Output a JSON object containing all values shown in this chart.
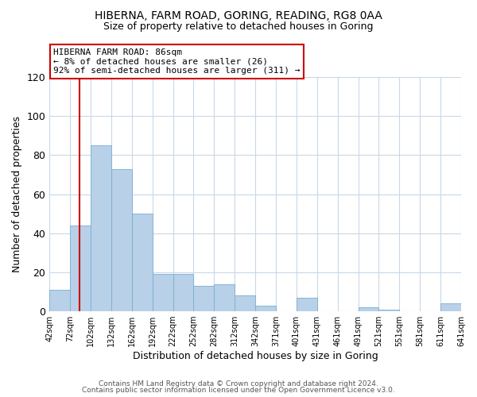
{
  "title": "HIBERNA, FARM ROAD, GORING, READING, RG8 0AA",
  "subtitle": "Size of property relative to detached houses in Goring",
  "xlabel": "Distribution of detached houses by size in Goring",
  "ylabel": "Number of detached properties",
  "bar_values": [
    11,
    44,
    85,
    73,
    50,
    19,
    19,
    13,
    14,
    8,
    3,
    0,
    7,
    0,
    0,
    2,
    1,
    0,
    0,
    4
  ],
  "bin_labels": [
    "42sqm",
    "72sqm",
    "102sqm",
    "132sqm",
    "162sqm",
    "192sqm",
    "222sqm",
    "252sqm",
    "282sqm",
    "312sqm",
    "342sqm",
    "371sqm",
    "401sqm",
    "431sqm",
    "461sqm",
    "491sqm",
    "521sqm",
    "551sqm",
    "581sqm",
    "611sqm",
    "641sqm"
  ],
  "bar_color": "#b8d0e8",
  "bar_edge_color": "#7aaed0",
  "redline_x": 1.4667,
  "annotation_title": "HIBERNA FARM ROAD: 86sqm",
  "annotation_line1": "← 8% of detached houses are smaller (26)",
  "annotation_line2": "92% of semi-detached houses are larger (311) →",
  "annotation_box_facecolor": "#ffffff",
  "annotation_box_edgecolor": "#cc0000",
  "redline_color": "#cc0000",
  "ylim": [
    0,
    120
  ],
  "yticks": [
    0,
    20,
    40,
    60,
    80,
    100,
    120
  ],
  "footer1": "Contains HM Land Registry data © Crown copyright and database right 2024.",
  "footer2": "Contains public sector information licensed under the Open Government Licence v3.0.",
  "bg_color": "#ffffff",
  "grid_color": "#c8d8e8",
  "title_fontsize": 10,
  "subtitle_fontsize": 9
}
